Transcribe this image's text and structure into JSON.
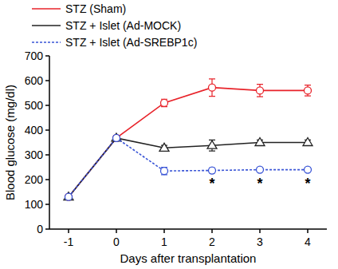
{
  "chart_data": {
    "type": "line",
    "x_label": "Days after transplantation",
    "y_label": "Blood glucose (mg/dl)",
    "x": [
      -1,
      0,
      1,
      2,
      3,
      4
    ],
    "xlim": [
      -1.4,
      4.4
    ],
    "xticks": [
      -1,
      0,
      1,
      2,
      3,
      4
    ],
    "ylim": [
      0,
      700
    ],
    "yticks": [
      0,
      100,
      200,
      300,
      400,
      500,
      600,
      700
    ],
    "grid": false,
    "legend": "top",
    "series": [
      {
        "name": "STZ (Sham)",
        "color": "#e8232a",
        "marker": "circle",
        "line_style": "solid",
        "values": [
          130,
          368,
          510,
          572,
          560,
          560
        ],
        "errors": [
          5,
          8,
          15,
          35,
          25,
          22
        ]
      },
      {
        "name": "STZ + Islet (Ad-MOCK)",
        "color": "#222222",
        "marker": "triangle",
        "line_style": "solid",
        "values": [
          130,
          368,
          328,
          338,
          350,
          350
        ],
        "errors": [
          5,
          8,
          10,
          22,
          10,
          10
        ]
      },
      {
        "name": "STZ + Islet (Ad-SREBP1c)",
        "color": "#3a55d6",
        "marker": "circle",
        "line_style": "dotted",
        "values": [
          130,
          368,
          235,
          237,
          240,
          240
        ],
        "errors": [
          5,
          8,
          15,
          10,
          8,
          8
        ]
      }
    ],
    "annotations": [
      {
        "text": "*",
        "x": 2,
        "y": 195
      },
      {
        "text": "*",
        "x": 3,
        "y": 195
      },
      {
        "text": "*",
        "x": 4,
        "y": 195
      }
    ]
  }
}
